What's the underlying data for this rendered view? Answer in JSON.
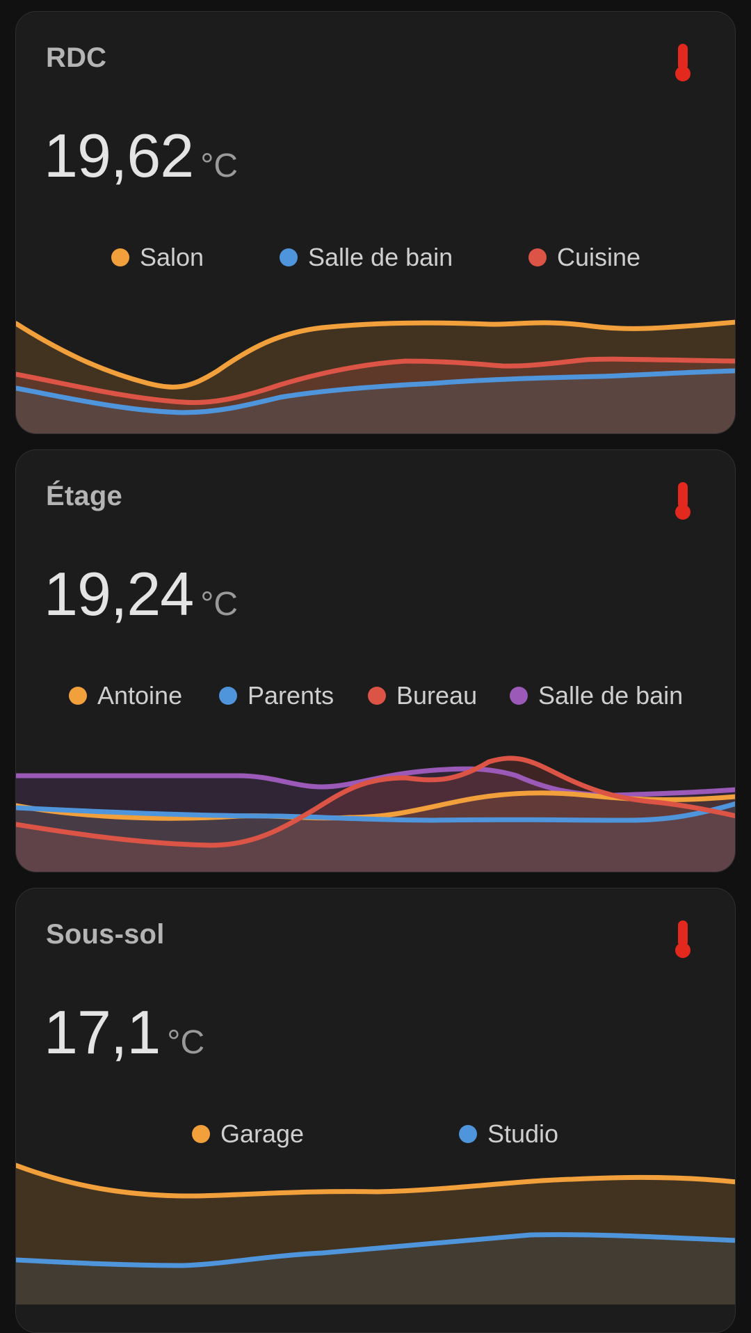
{
  "colors": {
    "orange": "#f2a03c",
    "blue": "#4f95dc",
    "red": "#dc5446",
    "purple": "#9b5ab8",
    "thermometer": "#e3281e"
  },
  "cards": [
    {
      "title": "RDC",
      "value": "19,62",
      "unit": "°C",
      "icon": "thermometer-icon",
      "legend": [
        {
          "label": "Salon",
          "color": "#f2a03c",
          "x": 137
        },
        {
          "label": "Salle de bain",
          "color": "#4f95dc",
          "x": 379
        },
        {
          "label": "Cuisine",
          "color": "#dc5446",
          "x": 737
        }
      ],
      "series": [
        {
          "name": "Salon",
          "color": "#f2a03c"
        },
        {
          "name": "Salle de bain",
          "color": "#4f95dc"
        },
        {
          "name": "Cuisine",
          "color": "#dc5446"
        }
      ]
    },
    {
      "title": "Étage",
      "value": "19,24",
      "unit": "°C",
      "icon": "thermometer-icon",
      "legend": [
        {
          "label": "Antoine",
          "color": "#f2a03c",
          "x": 76
        },
        {
          "label": "Parents",
          "color": "#4f95dc",
          "x": 292
        },
        {
          "label": "Bureau",
          "color": "#dc5446",
          "x": 506
        },
        {
          "label": "Salle de bain",
          "color": "#9b5ab8",
          "x": 710
        }
      ],
      "series": [
        {
          "name": "Antoine",
          "color": "#f2a03c"
        },
        {
          "name": "Parents",
          "color": "#4f95dc"
        },
        {
          "name": "Bureau",
          "color": "#dc5446"
        },
        {
          "name": "Salle de bain",
          "color": "#9b5ab8"
        }
      ]
    },
    {
      "title": "Sous-sol",
      "value": "17,1",
      "unit": "°C",
      "icon": "thermometer-icon",
      "legend": [
        {
          "label": "Garage",
          "color": "#f2a03c",
          "x": 253
        },
        {
          "label": "Studio",
          "color": "#4f95dc",
          "x": 637
        }
      ],
      "series": [
        {
          "name": "Garage",
          "color": "#f2a03c"
        },
        {
          "name": "Studio",
          "color": "#4f95dc"
        }
      ]
    }
  ]
}
